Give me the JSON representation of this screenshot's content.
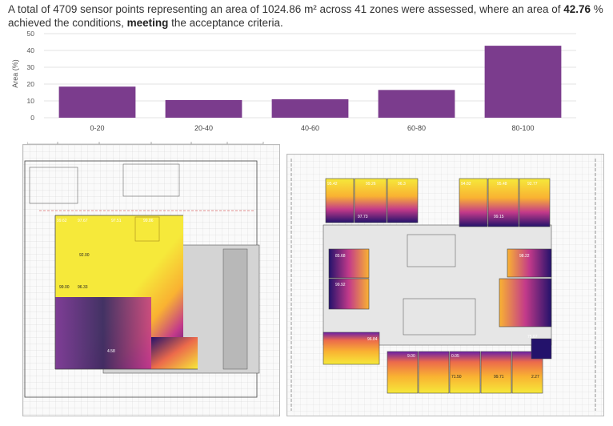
{
  "summary": {
    "t1": "A total of ",
    "points": "4709",
    "t2": " sensor points representing an area of ",
    "area": "1024.86",
    "t3": " m² across ",
    "zones": "41",
    "t4": " zones were assessed, where an area of ",
    "pct": "42.76",
    "t5": " % achieved the conditions, ",
    "result": "meeting",
    "t6": " the acceptance criteria."
  },
  "chart_data": {
    "type": "bar",
    "categories": [
      "0-20",
      "20-40",
      "40-60",
      "60-80",
      "80-100"
    ],
    "values": [
      18.5,
      10.5,
      11,
      16.5,
      42.8
    ],
    "title": "",
    "xlabel": "",
    "ylabel": "Area (%)",
    "ylim": [
      0,
      50
    ],
    "yticks": [
      0,
      10,
      20,
      30,
      40,
      50
    ],
    "bar_color": "#7b3c8d",
    "grid": true,
    "legend": "none"
  },
  "plans": {
    "left_labels": [
      "99.62",
      "97.67",
      "97.51",
      "99.86",
      "92.00",
      "96.33",
      "99.00",
      "4.58"
    ],
    "right_top_labels": [
      "95.42",
      "99.26",
      "96.3",
      "97.73",
      "94.82",
      "95.48",
      "92.77",
      "99.15"
    ],
    "right_mid_labels": [
      "85.68",
      "99.92",
      "98.22"
    ],
    "right_bottom_labels": [
      "96.84",
      "9.00",
      "0.05",
      "71.50",
      "99.71",
      "2.27",
      "75.67"
    ],
    "colors": {
      "high": "#f6e93a",
      "mid_high": "#f9b232",
      "mid": "#ec6a4b",
      "mid_low": "#c33a8a",
      "low": "#6a1fa6",
      "lowest": "#23126b",
      "dimmed_area": "#d4d4d4"
    }
  }
}
